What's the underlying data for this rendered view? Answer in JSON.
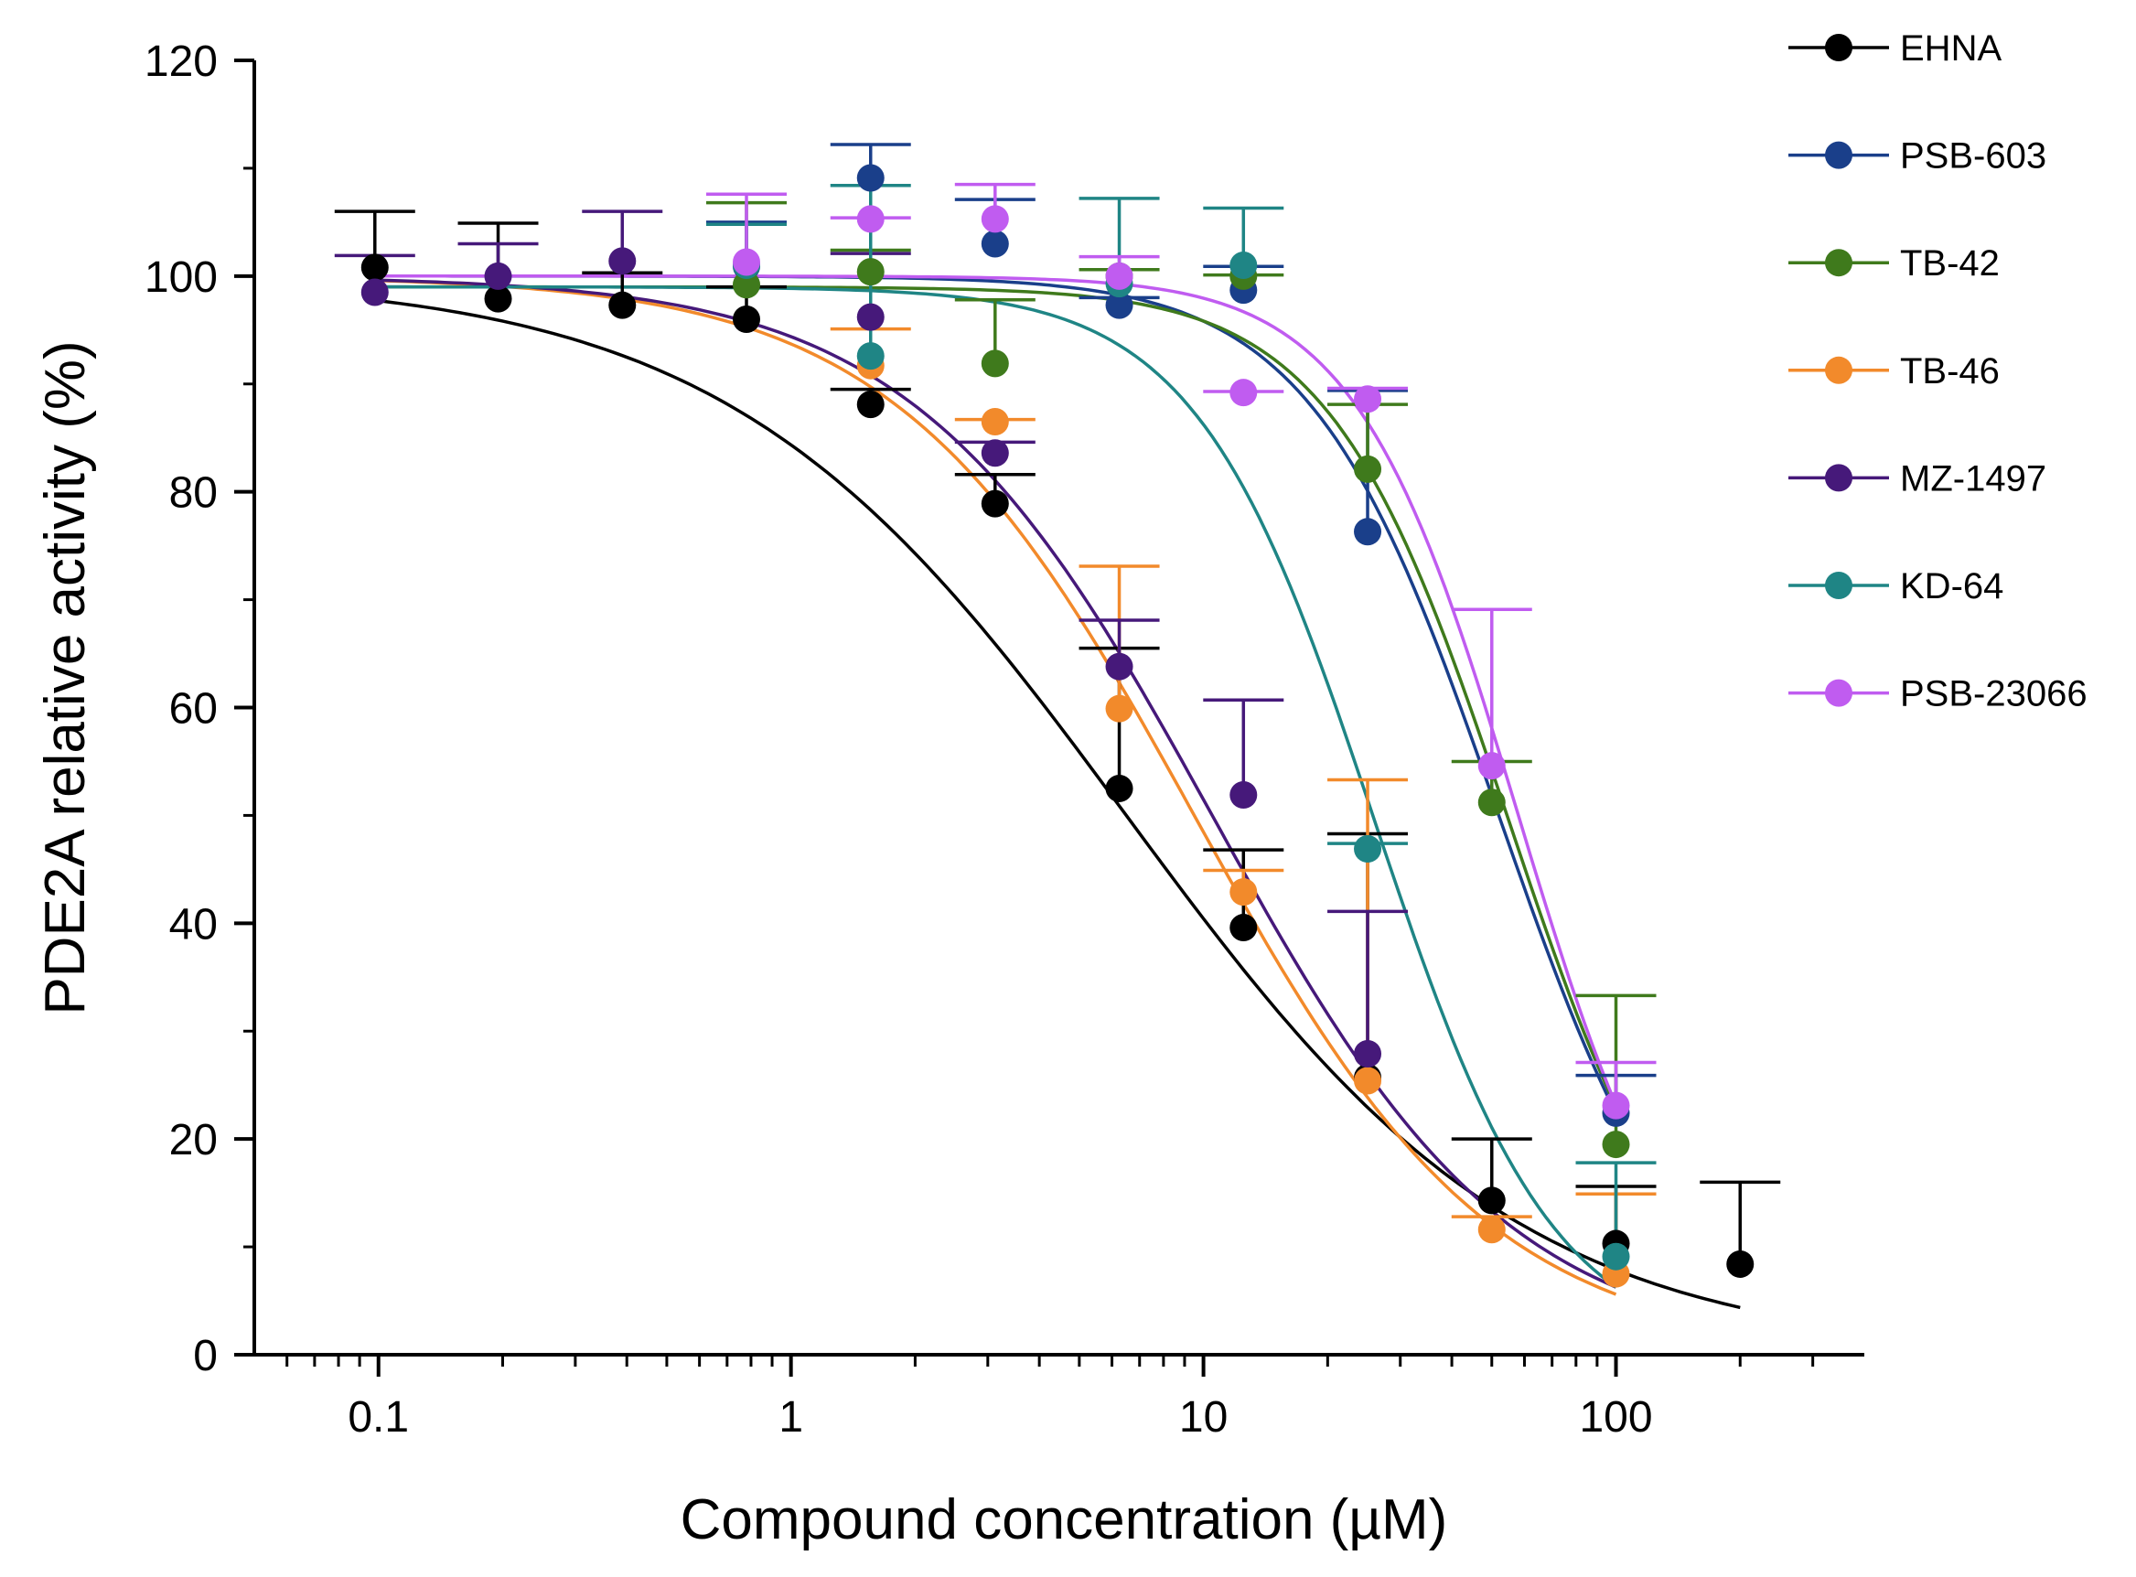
{
  "chart_data": {
    "type": "scatter",
    "title": "",
    "xlabel": "Compound concentration (µM)",
    "ylabel": "PDE2A relative activity (%)",
    "x_scale": "log",
    "xlim": [
      0.05,
      400
    ],
    "ylim": [
      0,
      120
    ],
    "x_ticks": [
      {
        "value": 0.1,
        "label": "0.1"
      },
      {
        "value": 1,
        "label": "1"
      },
      {
        "value": 10,
        "label": "10"
      },
      {
        "value": 100,
        "label": "100"
      }
    ],
    "y_ticks": [
      {
        "value": 0,
        "label": "0"
      },
      {
        "value": 20,
        "label": "20"
      },
      {
        "value": 40,
        "label": "40"
      },
      {
        "value": 60,
        "label": "60"
      },
      {
        "value": 80,
        "label": "80"
      },
      {
        "value": 100,
        "label": "100"
      },
      {
        "value": 120,
        "label": "120"
      }
    ],
    "legend_position": "outside-right",
    "series": [
      {
        "name": "EHNA",
        "color": "#000000",
        "x": [
          0.098,
          0.195,
          0.39,
          0.78,
          1.56,
          3.125,
          6.25,
          12.5,
          25,
          50,
          100,
          200
        ],
        "y": [
          100.8,
          97.9,
          97.3,
          96.0,
          88.1,
          78.9,
          52.5,
          39.6,
          25.7,
          14.3,
          10.3,
          8.4
        ],
        "err": [
          5.2,
          7.0,
          3.0,
          3.0,
          1.4,
          2.7,
          13.0,
          7.2,
          22.6,
          5.7,
          5.3,
          7.6
        ],
        "fit": {
          "top": 100,
          "bottom": 0,
          "ic50": 6.5,
          "hill": 0.9,
          "x_min": 0.098,
          "x_max": 200
        }
      },
      {
        "name": "PSB-603",
        "color": "#1a3f8a",
        "x": [
          0.78,
          1.56,
          3.125,
          6.25,
          12.5,
          25,
          100
        ],
        "y": [
          100.9,
          109.1,
          103.0,
          97.3,
          98.7,
          76.3,
          22.4
        ],
        "err": [
          4.1,
          3.1,
          4.1,
          0.7,
          2.2,
          13.1,
          3.5
        ],
        "fit": {
          "top": 100,
          "bottom": 0,
          "ic50": 52,
          "hill": 1.9,
          "x_min": 0.098,
          "x_max": 100
        }
      },
      {
        "name": "TB-42",
        "color": "#3f7a1c",
        "x": [
          0.78,
          1.56,
          3.125,
          6.25,
          12.5,
          25,
          50,
          100
        ],
        "y": [
          99.2,
          100.4,
          91.9,
          100.0,
          100.0,
          82.1,
          51.2,
          19.5
        ],
        "err": [
          7.6,
          2.0,
          5.9,
          0.6,
          0.1,
          6.0,
          3.8,
          13.8
        ],
        "fit": {
          "top": 99,
          "bottom": 0,
          "ic50": 55,
          "hill": 2.0,
          "x_min": 0.098,
          "x_max": 100
        }
      },
      {
        "name": "TB-46",
        "color": "#f28a2b",
        "x": [
          1.56,
          3.125,
          6.25,
          12.5,
          25,
          50,
          100
        ],
        "y": [
          91.7,
          86.5,
          59.9,
          42.9,
          25.4,
          11.6,
          7.5
        ],
        "err": [
          3.4,
          0.2,
          13.2,
          2.0,
          27.9,
          1.2,
          7.4
        ],
        "fit": {
          "top": 100,
          "bottom": 0,
          "ic50": 9.5,
          "hill": 1.2,
          "x_min": 0.098,
          "x_max": 100
        }
      },
      {
        "name": "MZ-1497",
        "color": "#46197a",
        "x": [
          0.098,
          0.195,
          0.39,
          1.56,
          3.125,
          6.25,
          12.5,
          25
        ],
        "y": [
          98.5,
          100.0,
          101.4,
          96.2,
          83.6,
          63.8,
          51.9,
          27.9
        ],
        "err": [
          3.4,
          3.0,
          4.6,
          5.9,
          1.0,
          4.3,
          8.8,
          13.2
        ],
        "fit": {
          "top": 100,
          "bottom": 0,
          "ic50": 10.5,
          "hill": 1.2,
          "x_min": 0.098,
          "x_max": 100
        }
      },
      {
        "name": "KD-64",
        "color": "#1f8585",
        "x": [
          0.78,
          1.56,
          6.25,
          12.5,
          25,
          100
        ],
        "y": [
          101.0,
          92.6,
          99.3,
          101.0,
          46.9,
          9.1
        ],
        "err": [
          3.8,
          15.8,
          7.9,
          5.3,
          0.5,
          8.7
        ],
        "fit": {
          "top": 99,
          "bottom": 0,
          "ic50": 26,
          "hill": 2.0,
          "x_min": 0.098,
          "x_max": 100
        }
      },
      {
        "name": "PSB-23066",
        "color": "#c05cf0",
        "x": [
          0.78,
          1.56,
          3.125,
          6.25,
          12.5,
          25,
          50,
          100
        ],
        "y": [
          101.3,
          105.3,
          105.3,
          100.0,
          89.2,
          88.6,
          54.6,
          23.1
        ],
        "err": [
          6.3,
          0.1,
          3.2,
          1.8,
          0.1,
          1.0,
          14.5,
          4.0
        ],
        "fit": {
          "top": 100,
          "bottom": 0,
          "ic50": 58,
          "hill": 2.2,
          "x_min": 0.098,
          "x_max": 100
        }
      }
    ]
  }
}
